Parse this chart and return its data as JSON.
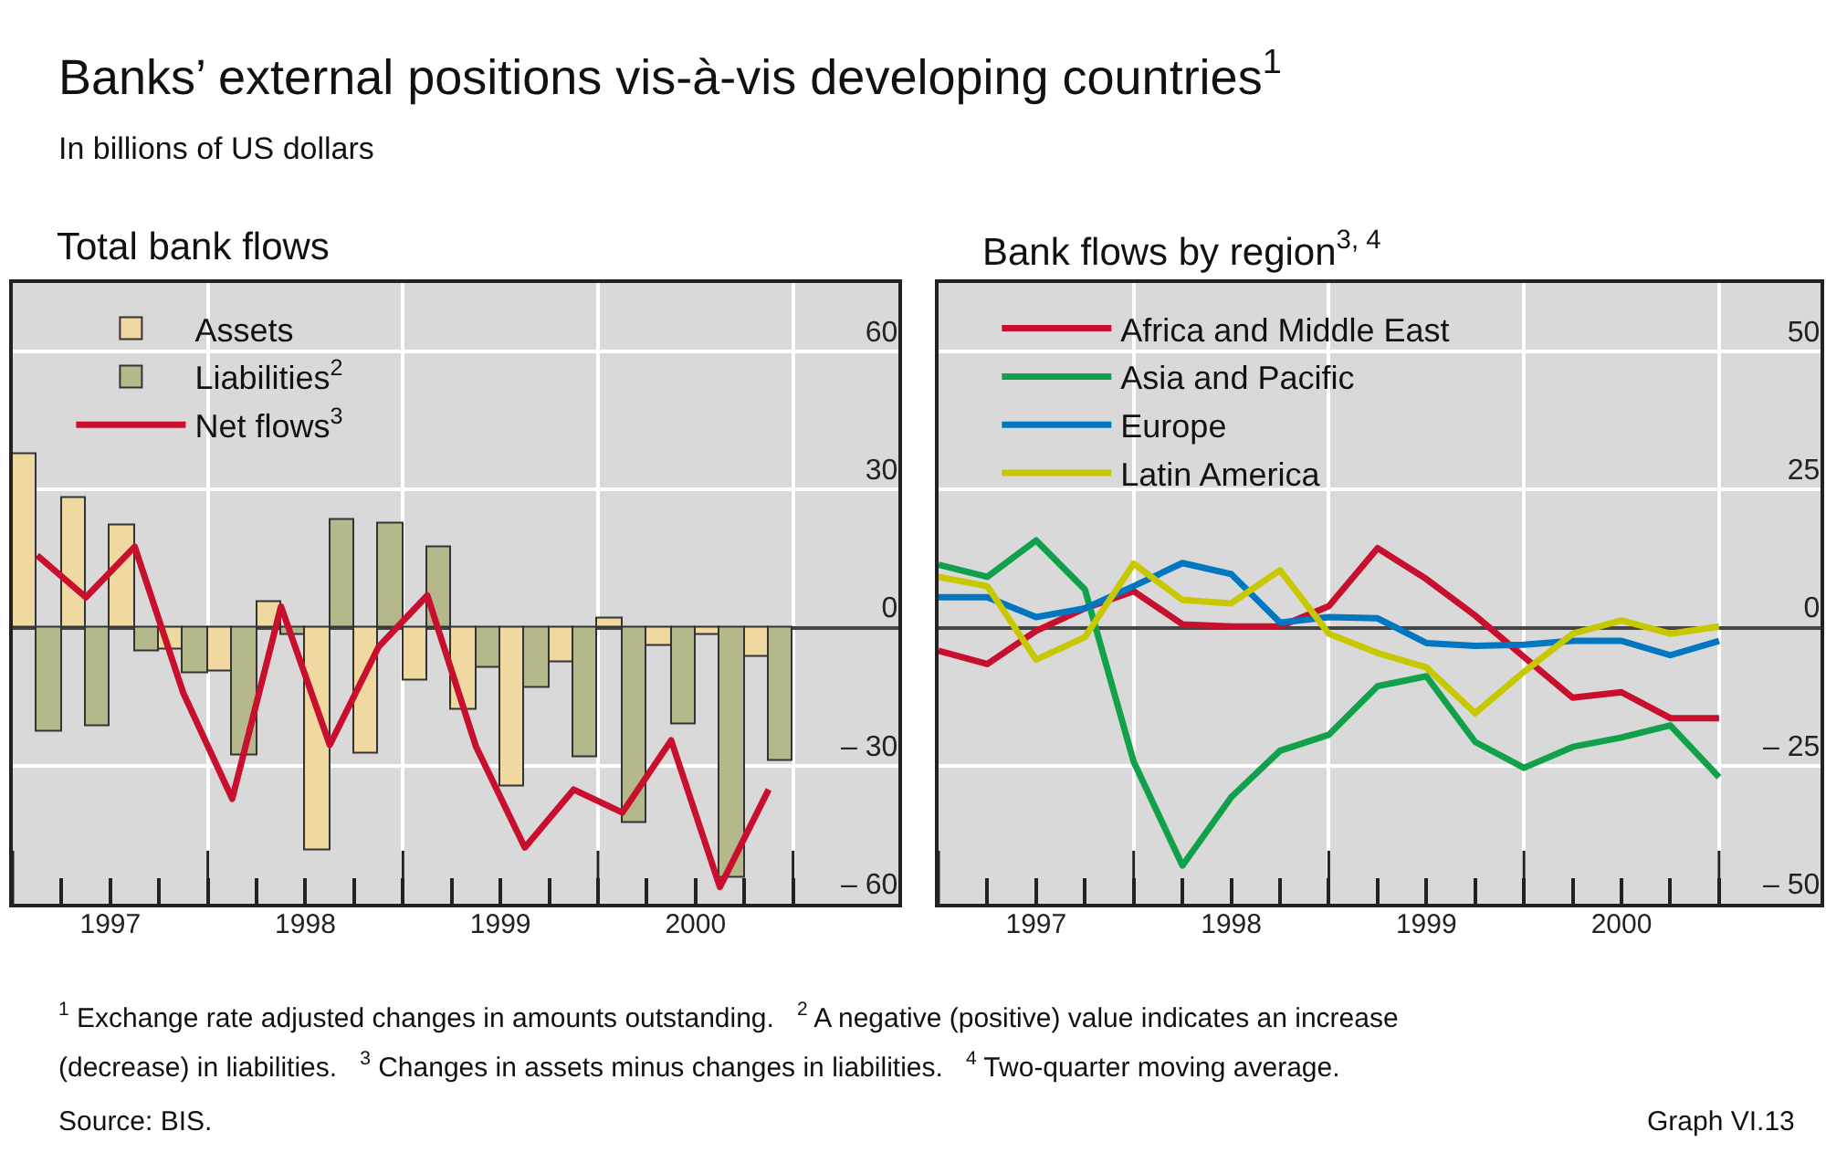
{
  "chart_data": [
    {
      "type": "bar",
      "title": "Total bank flows",
      "x": [
        1997.125,
        1997.375,
        1997.625,
        1997.875,
        1998.125,
        1998.375,
        1998.625,
        1998.875,
        1999.125,
        1999.375,
        1999.625,
        1999.875,
        2000.125,
        2000.375,
        2000.625,
        2000.875
      ],
      "series": [
        {
          "name": "Assets",
          "type": "bar",
          "color": "#f0d9a0",
          "values": [
            37.7,
            28.1,
            22.3,
            -4.8,
            -9.6,
            5.4,
            -48.4,
            -27.2,
            -11.4,
            -18.0,
            -34.5,
            -7.4,
            2.1,
            -3.8,
            -1.5,
            -6.5
          ]
        },
        {
          "name": "Liabilities$^{2}$",
          "type": "bar",
          "color": "#b5b88a",
          "values": [
            -22.8,
            -21.5,
            -5.0,
            -10.1,
            -27.6,
            -1.7,
            23.4,
            22.7,
            17.4,
            -8.8,
            -13.1,
            -28.1,
            -42.6,
            -21.1,
            -54.4,
            -28.8
          ]
        },
        {
          "name": "Net flows$^{3}$",
          "type": "line",
          "color": "#c8102e",
          "values": [
            15.7,
            6.6,
            17.6,
            -14.3,
            -37.2,
            4.6,
            -25.5,
            -4.2,
            7.0,
            -25.9,
            -47.8,
            -35.2,
            -40.2,
            -24.5,
            -56.4,
            -35.2
          ]
        }
      ],
      "xlim": [
        1997,
        2001.54
      ],
      "xticks": [
        {
          "value": 1997,
          "label": null
        },
        {
          "value": 1998,
          "label": null
        },
        {
          "value": 1999,
          "label": null
        },
        {
          "value": 2000,
          "label": null
        },
        {
          "value": 2001,
          "label": null
        },
        {
          "value": 1997.5,
          "label": "1997"
        },
        {
          "value": 1998.5,
          "label": "1998"
        },
        {
          "value": 1999.5,
          "label": "1999"
        },
        {
          "value": 2000.5,
          "label": "2000"
        }
      ],
      "ylim": [
        -60,
        75
      ],
      "yticks": [
        {
          "value": -60,
          "label": "– 60"
        },
        {
          "value": -30,
          "label": "– 30"
        },
        0,
        30,
        60
      ],
      "grid": true,
      "legend": "top left",
      "annotations": [
        "Banks’ external positions vis-à-vis developing countries$^{1}$",
        "In billions of US dollars",
        "$^{1}$ Exchange rate adjusted changes in amounts outstanding.   $^{2}$ A negative (positive) value indicates an increase",
        "(decrease) in liabilities.   $^{3}$ Changes in assets minus changes in liabilities.   $^{4}$ Two-quarter moving average.",
        "Source: BIS.",
        "Graph VI.13"
      ]
    },
    {
      "type": "line",
      "title": "Bank flows by region$^{3, 4}$",
      "x": [
        1997.0,
        1997.25,
        1997.5,
        1997.75,
        1998.0,
        1998.25,
        1998.5,
        1998.75,
        1999.0,
        1999.25,
        1999.5,
        1999.75,
        2000.0,
        2000.25,
        2000.5,
        2000.75,
        2001.0
      ],
      "series": [
        {
          "name": "Africa and Middle East",
          "color": "#c8102e",
          "values": [
            -4.2,
            -6.6,
            -0.6,
            3.5,
            6.6,
            0.6,
            0.2,
            0.2,
            3.9,
            14.4,
            8.8,
            2.2,
            -5.3,
            -12.7,
            -11.7,
            -16.4,
            -16.4
          ]
        },
        {
          "name": "Asia and Pacific",
          "color": "#12a14b",
          "values": [
            11.4,
            9.2,
            15.8,
            6.9,
            -24.3,
            -43.1,
            -30.7,
            -22.3,
            -19.4,
            -10.6,
            -8.8,
            -20.7,
            -25.4,
            -21.6,
            -19.9,
            -17.7,
            -27.1
          ]
        },
        {
          "name": "Europe",
          "color": "#0077c0",
          "values": [
            5.5,
            5.5,
            1.9,
            3.5,
            7.5,
            11.7,
            9.7,
            0.9,
            1.9,
            1.7,
            -2.8,
            -3.3,
            -3.1,
            -2.4,
            -2.4,
            -5.0,
            -2.4
          ]
        },
        {
          "name": "Latin America",
          "color": "#c8c800",
          "values": [
            9.2,
            7.5,
            -5.8,
            -1.7,
            11.6,
            5.0,
            4.4,
            10.4,
            -1.1,
            -4.6,
            -7.2,
            -15.5,
            -8.0,
            -1.1,
            1.3,
            -1.1,
            0.2
          ]
        }
      ],
      "xlim": [
        1997,
        2001.52
      ],
      "xticks": [
        {
          "value": 1997,
          "label": null
        },
        {
          "value": 1998,
          "label": null
        },
        {
          "value": 1999,
          "label": null
        },
        {
          "value": 2000,
          "label": null
        },
        {
          "value": 2001,
          "label": null
        },
        {
          "value": 1997.5,
          "label": "1997"
        },
        {
          "value": 1998.5,
          "label": "1998"
        },
        {
          "value": 1999.5,
          "label": "1999"
        },
        {
          "value": 2000.5,
          "label": "2000"
        }
      ],
      "ylim": [
        -50,
        62.5
      ],
      "yticks": [
        {
          "value": -50,
          "label": "– 50"
        },
        {
          "value": -25,
          "label": "– 25"
        },
        0,
        25,
        50
      ],
      "grid": true,
      "legend": "top left"
    }
  ]
}
